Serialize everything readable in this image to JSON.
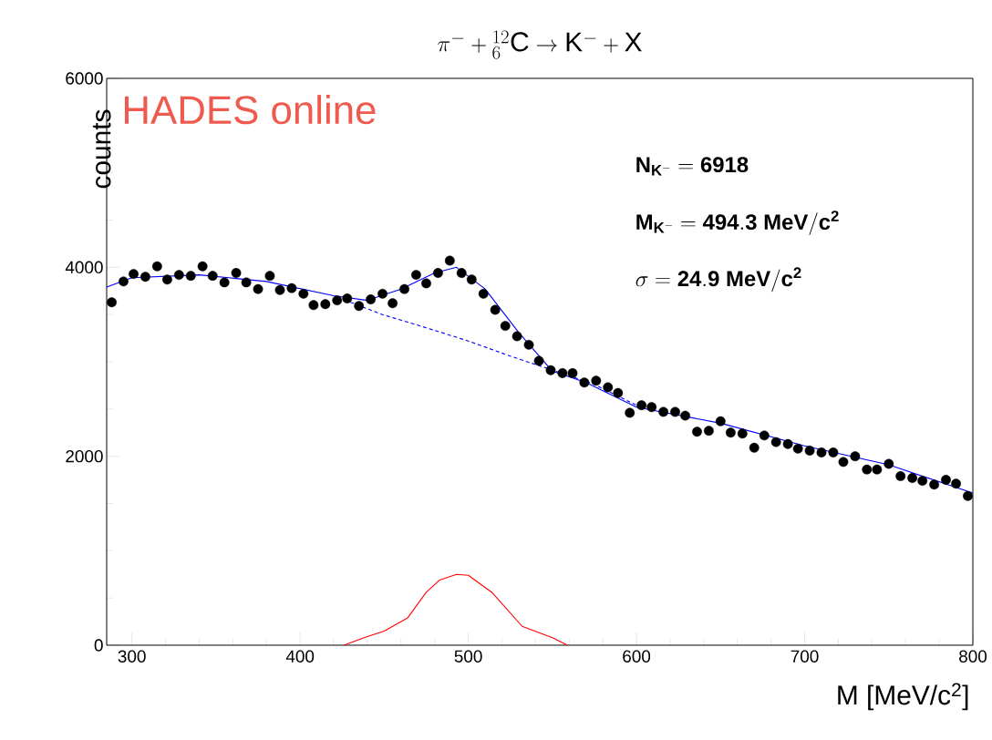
{
  "chart_data": {
    "type": "scatter",
    "title": "\\pi^{-} + {}^{12}_{6}\\mathrm{C} \\rightarrow \\mathrm{K}^{-} + \\mathrm{X}",
    "xlabel": "M [MeV/c$^{2}$]",
    "ylabel": "counts",
    "xlim": [
      285,
      800
    ],
    "xticks": [
      300,
      400,
      500,
      600,
      700,
      800
    ],
    "ylim": [
      0,
      6000
    ],
    "yticks": [
      0,
      2000,
      4000,
      6000
    ],
    "annotations": [
      "HADES online",
      "\\mathbf{N_{K^{-}} = 6918}",
      "\\mathbf{M_{K^{-}} = 494.3\\ MeV/c^{2}}",
      "\\sigma\\ \\mathbf{= 24.9\\ MeV/c^{2}}"
    ],
    "series": [
      {
        "color": "#000000",
        "marker": "circle",
        "x": [
          288,
          295,
          301,
          308,
          315,
          321,
          328,
          335,
          342,
          348,
          355,
          362,
          368,
          375,
          382,
          388,
          395,
          402,
          408,
          415,
          422,
          428,
          435,
          442,
          449,
          455,
          462,
          469,
          475,
          482,
          489,
          496,
          502,
          509,
          516,
          522,
          529,
          536,
          542,
          549,
          556,
          562,
          569,
          576,
          583,
          589,
          596,
          603,
          609,
          616,
          623,
          629,
          636,
          643,
          650,
          656,
          663,
          670,
          676,
          683,
          690,
          696,
          703,
          710,
          717,
          723,
          730,
          737,
          743,
          750,
          757,
          764,
          770,
          777,
          784,
          790,
          797
        ],
        "values": [
          3630,
          3850,
          3930,
          3900,
          4010,
          3870,
          3920,
          3910,
          4010,
          3910,
          3840,
          3940,
          3840,
          3770,
          3910,
          3760,
          3780,
          3720,
          3600,
          3610,
          3650,
          3670,
          3590,
          3660,
          3720,
          3620,
          3770,
          3920,
          3830,
          3940,
          4070,
          3940,
          3870,
          3720,
          3550,
          3380,
          3270,
          3180,
          3010,
          2910,
          2880,
          2880,
          2780,
          2800,
          2730,
          2670,
          2460,
          2540,
          2520,
          2470,
          2470,
          2430,
          2260,
          2270,
          2370,
          2250,
          2240,
          2090,
          2220,
          2150,
          2130,
          2080,
          2060,
          2040,
          2040,
          1940,
          2000,
          1860,
          1860,
          1920,
          1790,
          1770,
          1740,
          1700,
          1750,
          1710,
          1580
        ]
      },
      {
        "type": "line",
        "color": "#0000ff",
        "line_style": "solid",
        "x": [
          285,
          300,
          340,
          380,
          420,
          440,
          460,
          480,
          493,
          510,
          530,
          550,
          570,
          600,
          650,
          700,
          750,
          800
        ],
        "values": [
          3790,
          3890,
          3920,
          3850,
          3700,
          3650,
          3770,
          3940,
          4000,
          3770,
          3310,
          2900,
          2780,
          2520,
          2350,
          2110,
          1910,
          1610
        ]
      },
      {
        "type": "line",
        "color": "#0000ff",
        "line_style": "dashed",
        "x": [
          430,
          449,
          475,
          500,
          525,
          547,
          575,
          600
        ],
        "values": [
          3630,
          3500,
          3360,
          3220,
          3060,
          2930,
          2760,
          2540
        ]
      },
      {
        "type": "line",
        "color": "#ff0000",
        "line_style": "solid",
        "x": [
          426,
          438,
          450,
          464,
          475,
          483,
          493,
          500,
          514,
          532,
          550,
          559
        ],
        "values": [
          0,
          80,
          150,
          290,
          560,
          690,
          750,
          740,
          560,
          200,
          80,
          0
        ]
      }
    ]
  }
}
